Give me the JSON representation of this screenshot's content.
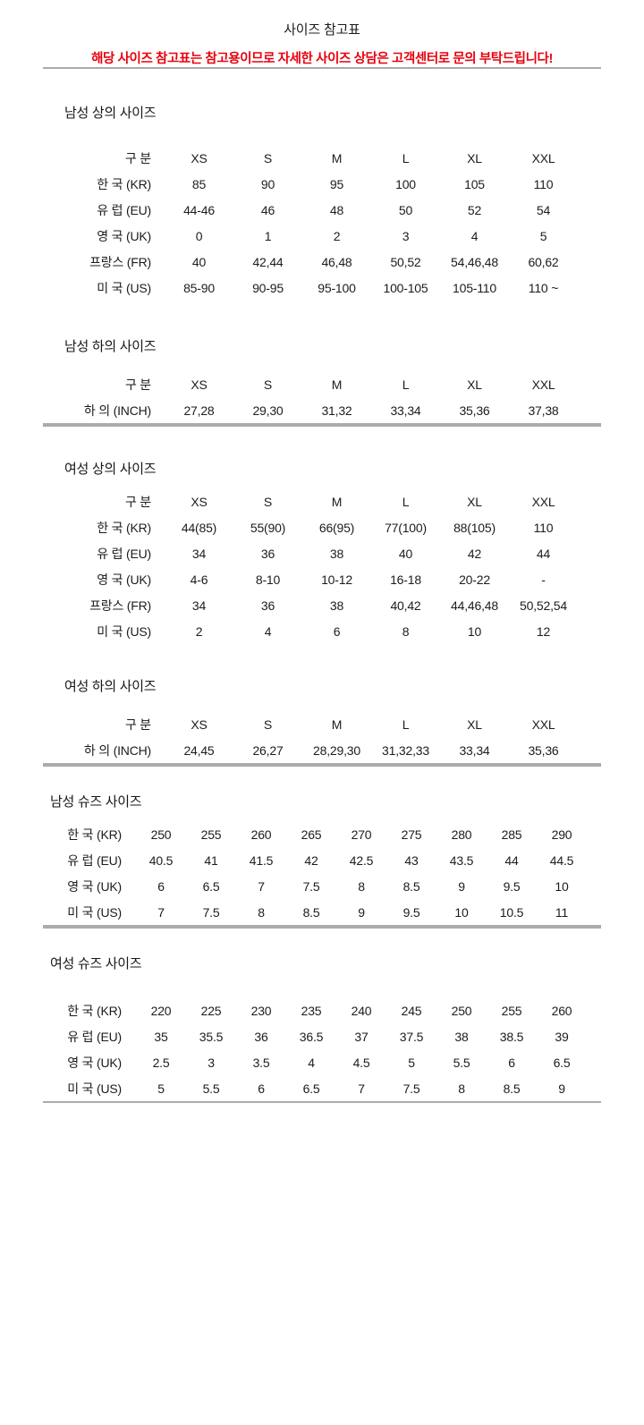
{
  "page": {
    "title": "사이즈 참고표",
    "notice": "해당 사이즈 참고표는 참고용이므로 자세한 사이즈 상담은 고객센터로 문의 부탁드립니다!",
    "notice_color": "#e8000d",
    "text_color": "#1c1c1c",
    "divider_color": "#ababab"
  },
  "tables": [
    {
      "id": "mens-tops",
      "title": "남성 상의 사이즈",
      "header": [
        "구 분",
        "XS",
        "S",
        "M",
        "L",
        "XL",
        "XXL"
      ],
      "rows": [
        {
          "label": "한 국 (KR)",
          "values": [
            "85",
            "90",
            "95",
            "100",
            "105",
            "110"
          ]
        },
        {
          "label": "유 럽 (EU)",
          "values": [
            "44-46",
            "46",
            "48",
            "50",
            "52",
            "54"
          ]
        },
        {
          "label": "영 국 (UK)",
          "values": [
            "0",
            "1",
            "2",
            "3",
            "4",
            "5"
          ]
        },
        {
          "label": "프랑스 (FR)",
          "values": [
            "40",
            "42,44",
            "46,48",
            "50,52",
            "54,46,48",
            "60,62"
          ]
        },
        {
          "label": "미 국 (US)",
          "values": [
            "85-90",
            "90-95",
            "95-100",
            "100-105",
            "105-110",
            "110 ~"
          ]
        }
      ]
    },
    {
      "id": "mens-bottoms",
      "title": "남성 하의 사이즈",
      "header": [
        "구 분",
        "XS",
        "S",
        "M",
        "L",
        "XL",
        "XXL"
      ],
      "rows": [
        {
          "label": "하 의 (INCH)",
          "values": [
            "27,28",
            "29,30",
            "31,32",
            "33,34",
            "35,36",
            "37,38"
          ]
        }
      ]
    },
    {
      "id": "womens-tops",
      "title": "여성 상의 사이즈",
      "header": [
        "구 분",
        "XS",
        "S",
        "M",
        "L",
        "XL",
        "XXL"
      ],
      "rows": [
        {
          "label": "한 국 (KR)",
          "values": [
            "44(85)",
            "55(90)",
            "66(95)",
            "77(100)",
            "88(105)",
            "110"
          ]
        },
        {
          "label": "유 럽 (EU)",
          "values": [
            "34",
            "36",
            "38",
            "40",
            "42",
            "44"
          ]
        },
        {
          "label": "영 국 (UK)",
          "values": [
            "4-6",
            "8-10",
            "10-12",
            "16-18",
            "20-22",
            "-"
          ]
        },
        {
          "label": "프랑스 (FR)",
          "values": [
            "34",
            "36",
            "38",
            "40,42",
            "44,46,48",
            "50,52,54"
          ]
        },
        {
          "label": "미 국 (US)",
          "values": [
            "2",
            "4",
            "6",
            "8",
            "10",
            "12"
          ]
        }
      ]
    },
    {
      "id": "womens-bottoms",
      "title": "여성 하의 사이즈",
      "header": [
        "구 분",
        "XS",
        "S",
        "M",
        "L",
        "XL",
        "XXL"
      ],
      "rows": [
        {
          "label": "하 의 (INCH)",
          "values": [
            "24,45",
            "26,27",
            "28,29,30",
            "31,32,33",
            "33,34",
            "35,36"
          ]
        }
      ]
    },
    {
      "id": "mens-shoes",
      "title": "남성 슈즈 사이즈",
      "header": null,
      "rows": [
        {
          "label": "한 국 (KR)",
          "values": [
            "250",
            "255",
            "260",
            "265",
            "270",
            "275",
            "280",
            "285",
            "290"
          ]
        },
        {
          "label": "유 럽 (EU)",
          "values": [
            "40.5",
            "41",
            "41.5",
            "42",
            "42.5",
            "43",
            "43.5",
            "44",
            "44.5"
          ]
        },
        {
          "label": "영 국 (UK)",
          "values": [
            "6",
            "6.5",
            "7",
            "7.5",
            "8",
            "8.5",
            "9",
            "9.5",
            "10"
          ]
        },
        {
          "label": "미 국 (US)",
          "values": [
            "7",
            "7.5",
            "8",
            "8.5",
            "9",
            "9.5",
            "10",
            "10.5",
            "11"
          ]
        }
      ]
    },
    {
      "id": "womens-shoes",
      "title": "여성 슈즈 사이즈",
      "header": null,
      "rows": [
        {
          "label": "한 국 (KR)",
          "values": [
            "220",
            "225",
            "230",
            "235",
            "240",
            "245",
            "250",
            "255",
            "260"
          ]
        },
        {
          "label": "유 럽 (EU)",
          "values": [
            "35",
            "35.5",
            "36",
            "36.5",
            "37",
            "37.5",
            "38",
            "38.5",
            "39"
          ]
        },
        {
          "label": "영 국 (UK)",
          "values": [
            "2.5",
            "3",
            "3.5",
            "4",
            "4.5",
            "5",
            "5.5",
            "6",
            "6.5"
          ]
        },
        {
          "label": "미 국 (US)",
          "values": [
            "5",
            "5.5",
            "6",
            "6.5",
            "7",
            "7.5",
            "8",
            "8.5",
            "9"
          ]
        }
      ]
    }
  ]
}
